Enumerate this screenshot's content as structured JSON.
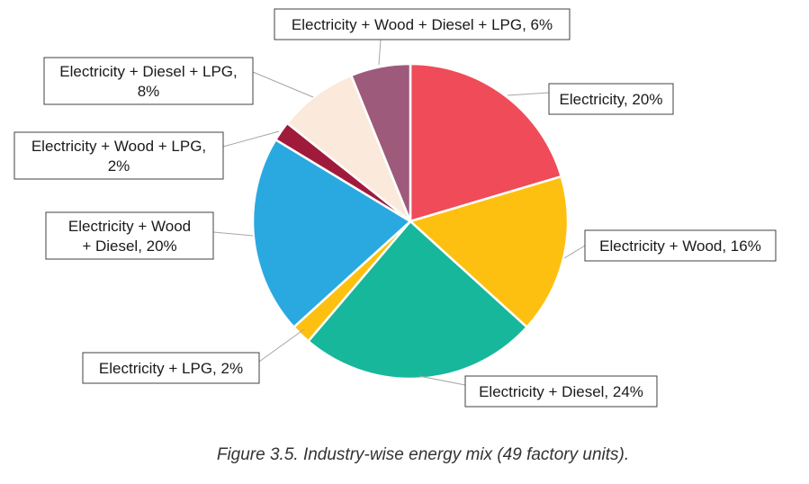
{
  "chart_data": {
    "type": "pie",
    "caption": "Figure 3.5. Industry-wise energy mix (49 factory units).",
    "slices": [
      {
        "name": "Electricity",
        "value": 20,
        "label_lines": [
          "Electricity, 20%"
        ],
        "color": "#ef4b59"
      },
      {
        "name": "Electricity + Wood",
        "value": 16,
        "label_lines": [
          "Electricity + Wood, 16%"
        ],
        "color": "#fec010"
      },
      {
        "name": "Electricity + Diesel",
        "value": 24,
        "label_lines": [
          "Electricity + Diesel, 24%"
        ],
        "color": "#17b79b"
      },
      {
        "name": "Electricity + LPG",
        "value": 2,
        "label_lines": [
          "Electricity + LPG, 2%"
        ],
        "color": "#fec010"
      },
      {
        "name": "Electricity + Wood + Diesel",
        "value": 20,
        "label_lines": [
          "Electricity + Wood",
          "+ Diesel, 20%"
        ],
        "color": "#2aa9e1"
      },
      {
        "name": "Electricity + Wood + LPG",
        "value": 2,
        "label_lines": [
          "Electricity + Wood + LPG,",
          "2%"
        ],
        "color": "#a01b3b"
      },
      {
        "name": "Electricity + Diesel + LPG",
        "value": 8,
        "label_lines": [
          "Electricity + Diesel + LPG,",
          "8%"
        ],
        "color": "#fbeadb"
      },
      {
        "name": "Electricity + Wood + Diesel + LPG",
        "value": 6,
        "label_lines": [
          "Electricity + Wood + Diesel + LPG, 6%"
        ],
        "color": "#9e5a7a"
      }
    ]
  }
}
